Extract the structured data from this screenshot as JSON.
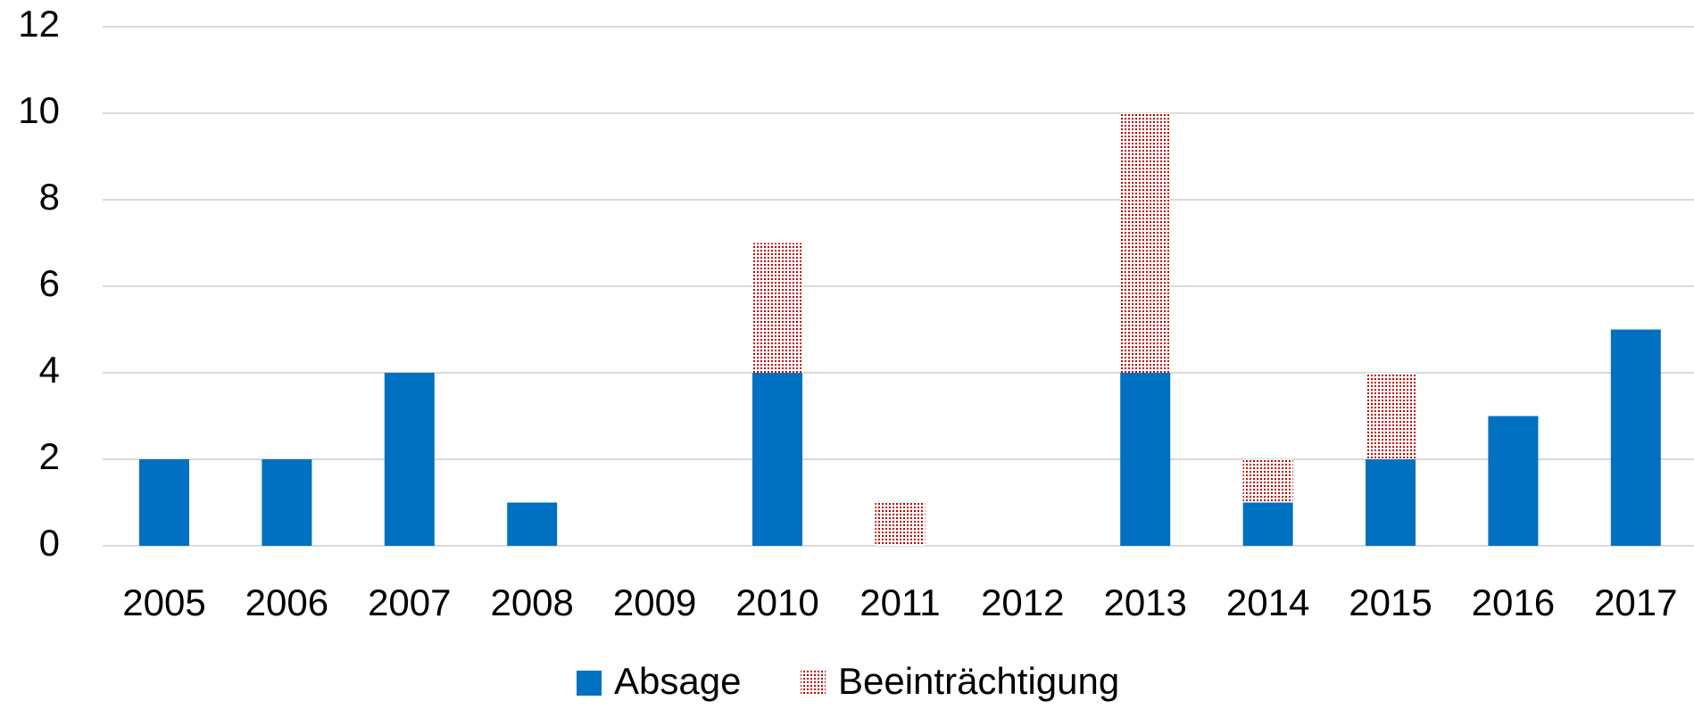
{
  "chart_data": {
    "type": "stacked_bar",
    "categories": [
      "2005",
      "2006",
      "2007",
      "2008",
      "2009",
      "2010",
      "2011",
      "2012",
      "2013",
      "2014",
      "2015",
      "2016",
      "2017"
    ],
    "series": [
      {
        "name": "Absage",
        "color": "#0070c0",
        "values": [
          2,
          2,
          4,
          1,
          0,
          4,
          0,
          0,
          4,
          1,
          2,
          3,
          5
        ]
      },
      {
        "name": "Beeinträchtigung",
        "color": "#c00000",
        "pattern": "dotted",
        "values": [
          0,
          0,
          0,
          0,
          0,
          3,
          1,
          0,
          6,
          1,
          2,
          0,
          0
        ]
      }
    ],
    "ylim": [
      0,
      12
    ],
    "yticks": [
      0,
      2,
      4,
      6,
      8,
      10,
      12
    ],
    "grid": true,
    "legend": "bottom"
  }
}
